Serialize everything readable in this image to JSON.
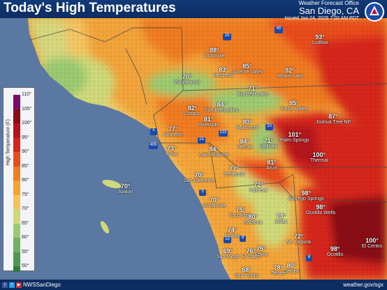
{
  "header": {
    "title": "Today's High Temperatures",
    "office_line": "Weather Forecast Office",
    "office_name": "San Diego, CA",
    "issued": "Issued Jun 24, 2025 7:02 AM PDT"
  },
  "legend": {
    "title": "High Temperature (F)",
    "ticks": [
      "110°",
      "105°",
      "100°",
      "95°",
      "90°",
      "85°",
      "80°",
      "75°",
      "70°",
      "65°",
      "60°",
      "55°",
      "50°"
    ],
    "colors": [
      "#7a0b6e",
      "#8a0d12",
      "#b5121b",
      "#d6261c",
      "#e84e1b",
      "#f07c22",
      "#f4a430",
      "#f5c35a",
      "#cfd97a",
      "#9cca72",
      "#6fb25f",
      "#4c9a50",
      "#2e7d3f"
    ]
  },
  "places": [
    {
      "name": "Victorville",
      "temp": "88°"
    },
    {
      "name": "Hesperia",
      "temp": "83°"
    },
    {
      "name": "Lucerne Valley",
      "temp": "85°"
    },
    {
      "name": "Ludlow",
      "temp": "93°"
    },
    {
      "name": "Means Lake",
      "temp": "92°"
    },
    {
      "name": "Wrightwood",
      "temp": "70°"
    },
    {
      "name": "Big Bear Lake",
      "temp": "71°"
    },
    {
      "name": "San Bernardino",
      "temp": "84°"
    },
    {
      "name": "Yucca Valley",
      "temp": "85°"
    },
    {
      "name": "Ontario",
      "temp": "82°"
    },
    {
      "name": "Riverside",
      "temp": "81°"
    },
    {
      "name": "Beaumont",
      "temp": "80°"
    },
    {
      "name": "Joshua Tree NP",
      "temp": "87°"
    },
    {
      "name": "Anaheim",
      "temp": "77°"
    },
    {
      "name": "Palm Springs",
      "temp": "101°"
    },
    {
      "name": "Hemet",
      "temp": "84°"
    },
    {
      "name": "Idyllwild",
      "temp": "71°"
    },
    {
      "name": "Irvine",
      "temp": "73°"
    },
    {
      "name": "Lake Elsinore",
      "temp": "84°"
    },
    {
      "name": "Thermal",
      "temp": "100°"
    },
    {
      "name": "Anza",
      "temp": "81°"
    },
    {
      "name": "Temecula",
      "temp": "77°"
    },
    {
      "name": "San Clemente",
      "temp": "70°"
    },
    {
      "name": "Avalon",
      "temp": "70°"
    },
    {
      "name": "Palomar",
      "temp": "72°"
    },
    {
      "name": "Borrego Springs",
      "temp": "98°"
    },
    {
      "name": "Oceanside",
      "temp": "70°"
    },
    {
      "name": "Ocotillo Wells",
      "temp": "98°"
    },
    {
      "name": "Escondido",
      "temp": "75°"
    },
    {
      "name": "Ramona",
      "temp": "80°"
    },
    {
      "name": "Julian",
      "temp": "73°"
    },
    {
      "name": "Mt. Laguna",
      "temp": "72°"
    },
    {
      "name": "Poway",
      "temp": "74°"
    },
    {
      "name": "San Diego",
      "temp": "69°"
    },
    {
      "name": "Alpine",
      "temp": "75°"
    },
    {
      "name": "El Cajon",
      "temp": "76°"
    },
    {
      "name": "El Centro",
      "temp": "100°"
    },
    {
      "name": "Ocotillo",
      "temp": "98°"
    },
    {
      "name": "Campo",
      "temp": "80°"
    },
    {
      "name": "Tecate",
      "temp": "78°"
    },
    {
      "name": "San Ysidro",
      "temp": "68°"
    }
  ],
  "highways": [
    "15",
    "40",
    "5",
    "405",
    "215",
    "10",
    "15",
    "5",
    "15",
    "8",
    "8"
  ],
  "footer": {
    "social": "NWSSanDiego",
    "url": "weather.gov/sgx"
  }
}
